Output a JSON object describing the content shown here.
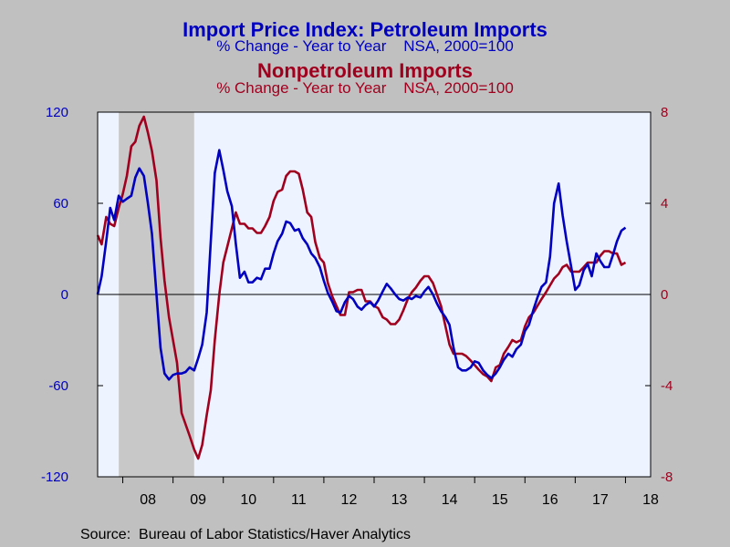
{
  "titles": {
    "line1": "Import Price Index: Petroleum Imports",
    "line2": "% Change - Year to Year    NSA, 2000=100",
    "line3": "Nonpetroleum Imports",
    "line4": "% Change - Year to Year    NSA, 2000=100"
  },
  "source": "Source:  Bureau of Labor Statistics/Haver Analytics",
  "colors": {
    "petroleum": "#0000c0",
    "nonpetroleum": "#a0001e",
    "plot_bg": "#eef4ff",
    "recession": "#c8c8c8",
    "frame": "#c0c0c0"
  },
  "chart_data": {
    "type": "line",
    "x_range": [
      2007.5,
      2018.5
    ],
    "x_tick_labels": [
      "08",
      "09",
      "10",
      "11",
      "12",
      "13",
      "14",
      "15",
      "16",
      "17",
      "18"
    ],
    "y_left": {
      "range": [
        -120,
        120
      ],
      "ticks": [
        "120",
        "60",
        "0",
        "-60",
        "-120"
      ]
    },
    "y_right": {
      "range": [
        -8,
        8
      ],
      "ticks": [
        "8",
        "4",
        "0",
        "-4",
        "-8"
      ]
    },
    "recession_shading": [
      2007.92,
      2009.42
    ],
    "zero_line": true,
    "series": [
      {
        "axis": "left",
        "points": [
          [
            2007.5,
            0
          ],
          [
            2007.58,
            12
          ],
          [
            2007.67,
            35
          ],
          [
            2007.75,
            57
          ],
          [
            2007.83,
            49
          ],
          [
            2007.92,
            65
          ],
          [
            2008.0,
            61
          ],
          [
            2008.08,
            63
          ],
          [
            2008.17,
            65
          ],
          [
            2008.25,
            77
          ],
          [
            2008.33,
            83
          ],
          [
            2008.42,
            78
          ],
          [
            2008.5,
            60
          ],
          [
            2008.58,
            40
          ],
          [
            2008.67,
            0
          ],
          [
            2008.75,
            -35
          ],
          [
            2008.83,
            -52
          ],
          [
            2008.92,
            -56
          ],
          [
            2009.0,
            -53
          ],
          [
            2009.08,
            -52
          ],
          [
            2009.17,
            -52
          ],
          [
            2009.25,
            -51
          ],
          [
            2009.33,
            -48
          ],
          [
            2009.42,
            -50
          ],
          [
            2009.5,
            -42
          ],
          [
            2009.58,
            -33
          ],
          [
            2009.67,
            -12
          ],
          [
            2009.75,
            35
          ],
          [
            2009.83,
            80
          ],
          [
            2009.92,
            95
          ],
          [
            2010.0,
            82
          ],
          [
            2010.08,
            68
          ],
          [
            2010.17,
            58
          ],
          [
            2010.25,
            33
          ],
          [
            2010.33,
            11
          ],
          [
            2010.42,
            15
          ],
          [
            2010.5,
            8
          ],
          [
            2010.58,
            8
          ],
          [
            2010.67,
            11
          ],
          [
            2010.75,
            10
          ],
          [
            2010.83,
            17
          ],
          [
            2010.92,
            17
          ],
          [
            2011.0,
            27
          ],
          [
            2011.08,
            35
          ],
          [
            2011.17,
            40
          ],
          [
            2011.25,
            48
          ],
          [
            2011.33,
            47
          ],
          [
            2011.42,
            42
          ],
          [
            2011.5,
            43
          ],
          [
            2011.58,
            37
          ],
          [
            2011.67,
            33
          ],
          [
            2011.75,
            27
          ],
          [
            2011.83,
            24
          ],
          [
            2011.92,
            18
          ],
          [
            2012.0,
            9
          ],
          [
            2012.08,
            1
          ],
          [
            2012.17,
            -5
          ],
          [
            2012.25,
            -11
          ],
          [
            2012.33,
            -12
          ],
          [
            2012.42,
            -5
          ],
          [
            2012.5,
            -1
          ],
          [
            2012.58,
            -3
          ],
          [
            2012.67,
            -8
          ],
          [
            2012.75,
            -10
          ],
          [
            2012.83,
            -7
          ],
          [
            2012.92,
            -5
          ],
          [
            2013.0,
            -8
          ],
          [
            2013.08,
            -4
          ],
          [
            2013.17,
            2
          ],
          [
            2013.25,
            7
          ],
          [
            2013.33,
            4
          ],
          [
            2013.42,
            0
          ],
          [
            2013.5,
            -3
          ],
          [
            2013.58,
            -4
          ],
          [
            2013.67,
            -2
          ],
          [
            2013.75,
            -3
          ],
          [
            2013.83,
            -1
          ],
          [
            2013.92,
            -2
          ],
          [
            2014.0,
            2
          ],
          [
            2014.08,
            5
          ],
          [
            2014.17,
            0
          ],
          [
            2014.25,
            -6
          ],
          [
            2014.33,
            -11
          ],
          [
            2014.42,
            -15
          ],
          [
            2014.5,
            -20
          ],
          [
            2014.58,
            -35
          ],
          [
            2014.67,
            -48
          ],
          [
            2014.75,
            -50
          ],
          [
            2014.83,
            -50
          ],
          [
            2014.92,
            -48
          ],
          [
            2015.0,
            -44
          ],
          [
            2015.08,
            -45
          ],
          [
            2015.17,
            -50
          ],
          [
            2015.25,
            -53
          ],
          [
            2015.33,
            -55
          ],
          [
            2015.42,
            -52
          ],
          [
            2015.5,
            -48
          ],
          [
            2015.58,
            -43
          ],
          [
            2015.67,
            -39
          ],
          [
            2015.75,
            -41
          ],
          [
            2015.83,
            -36
          ],
          [
            2015.92,
            -33
          ],
          [
            2016.0,
            -24
          ],
          [
            2016.08,
            -20
          ],
          [
            2016.17,
            -10
          ],
          [
            2016.25,
            -2
          ],
          [
            2016.33,
            5
          ],
          [
            2016.42,
            8
          ],
          [
            2016.5,
            25
          ],
          [
            2016.58,
            60
          ],
          [
            2016.67,
            73
          ],
          [
            2016.75,
            52
          ],
          [
            2016.83,
            35
          ],
          [
            2016.92,
            18
          ],
          [
            2017.0,
            3
          ],
          [
            2017.08,
            6
          ],
          [
            2017.17,
            16
          ],
          [
            2017.25,
            20
          ],
          [
            2017.33,
            12
          ],
          [
            2017.42,
            27
          ],
          [
            2017.5,
            22
          ],
          [
            2017.58,
            18
          ],
          [
            2017.67,
            18
          ],
          [
            2017.75,
            26
          ],
          [
            2017.83,
            35
          ],
          [
            2017.92,
            42
          ],
          [
            2018.0,
            44
          ]
        ]
      },
      {
        "axis": "right",
        "points": [
          [
            2007.5,
            2.6
          ],
          [
            2007.58,
            2.2
          ],
          [
            2007.67,
            3.4
          ],
          [
            2007.75,
            3.1
          ],
          [
            2007.83,
            3.0
          ],
          [
            2007.92,
            3.8
          ],
          [
            2008.0,
            4.4
          ],
          [
            2008.08,
            5.2
          ],
          [
            2008.17,
            6.5
          ],
          [
            2008.25,
            6.7
          ],
          [
            2008.33,
            7.4
          ],
          [
            2008.42,
            7.8
          ],
          [
            2008.5,
            7.1
          ],
          [
            2008.58,
            6.3
          ],
          [
            2008.67,
            5.0
          ],
          [
            2008.75,
            2.5
          ],
          [
            2008.83,
            0.6
          ],
          [
            2008.92,
            -1.0
          ],
          [
            2009.0,
            -2.0
          ],
          [
            2009.08,
            -3.0
          ],
          [
            2009.17,
            -5.2
          ],
          [
            2009.25,
            -5.7
          ],
          [
            2009.33,
            -6.2
          ],
          [
            2009.42,
            -6.8
          ],
          [
            2009.5,
            -7.2
          ],
          [
            2009.58,
            -6.6
          ],
          [
            2009.67,
            -5.3
          ],
          [
            2009.75,
            -4.2
          ],
          [
            2009.83,
            -2.0
          ],
          [
            2009.92,
            0.0
          ],
          [
            2010.0,
            1.4
          ],
          [
            2010.08,
            2.1
          ],
          [
            2010.17,
            2.9
          ],
          [
            2010.25,
            3.6
          ],
          [
            2010.33,
            3.1
          ],
          [
            2010.42,
            3.1
          ],
          [
            2010.5,
            2.9
          ],
          [
            2010.58,
            2.9
          ],
          [
            2010.67,
            2.7
          ],
          [
            2010.75,
            2.7
          ],
          [
            2010.83,
            3.0
          ],
          [
            2010.92,
            3.4
          ],
          [
            2011.0,
            4.1
          ],
          [
            2011.08,
            4.5
          ],
          [
            2011.17,
            4.6
          ],
          [
            2011.25,
            5.2
          ],
          [
            2011.33,
            5.4
          ],
          [
            2011.42,
            5.4
          ],
          [
            2011.5,
            5.3
          ],
          [
            2011.58,
            4.6
          ],
          [
            2011.67,
            3.6
          ],
          [
            2011.75,
            3.4
          ],
          [
            2011.83,
            2.3
          ],
          [
            2011.92,
            1.6
          ],
          [
            2012.0,
            1.4
          ],
          [
            2012.08,
            0.5
          ],
          [
            2012.17,
            -0.1
          ],
          [
            2012.25,
            -0.5
          ],
          [
            2012.33,
            -0.9
          ],
          [
            2012.42,
            -0.9
          ],
          [
            2012.5,
            0.1
          ],
          [
            2012.58,
            0.1
          ],
          [
            2012.67,
            0.2
          ],
          [
            2012.75,
            0.2
          ],
          [
            2012.83,
            -0.3
          ],
          [
            2012.92,
            -0.3
          ],
          [
            2013.0,
            -0.5
          ],
          [
            2013.08,
            -0.6
          ],
          [
            2013.17,
            -1.0
          ],
          [
            2013.25,
            -1.1
          ],
          [
            2013.33,
            -1.3
          ],
          [
            2013.42,
            -1.3
          ],
          [
            2013.5,
            -1.1
          ],
          [
            2013.58,
            -0.7
          ],
          [
            2013.67,
            -0.2
          ],
          [
            2013.75,
            0.1
          ],
          [
            2013.83,
            0.3
          ],
          [
            2013.92,
            0.6
          ],
          [
            2014.0,
            0.8
          ],
          [
            2014.08,
            0.8
          ],
          [
            2014.17,
            0.5
          ],
          [
            2014.25,
            0.0
          ],
          [
            2014.33,
            -0.5
          ],
          [
            2014.42,
            -1.4
          ],
          [
            2014.5,
            -2.2
          ],
          [
            2014.58,
            -2.6
          ],
          [
            2014.67,
            -2.6
          ],
          [
            2014.75,
            -2.6
          ],
          [
            2014.83,
            -2.7
          ],
          [
            2014.92,
            -2.9
          ],
          [
            2015.0,
            -3.1
          ],
          [
            2015.08,
            -3.3
          ],
          [
            2015.17,
            -3.5
          ],
          [
            2015.25,
            -3.6
          ],
          [
            2015.33,
            -3.8
          ],
          [
            2015.42,
            -3.2
          ],
          [
            2015.5,
            -3.1
          ],
          [
            2015.58,
            -2.6
          ],
          [
            2015.67,
            -2.3
          ],
          [
            2015.75,
            -2.0
          ],
          [
            2015.83,
            -2.1
          ],
          [
            2015.92,
            -2.0
          ],
          [
            2016.0,
            -1.4
          ],
          [
            2016.08,
            -1.0
          ],
          [
            2016.17,
            -0.8
          ],
          [
            2016.25,
            -0.5
          ],
          [
            2016.33,
            -0.2
          ],
          [
            2016.42,
            0.1
          ],
          [
            2016.5,
            0.4
          ],
          [
            2016.58,
            0.7
          ],
          [
            2016.67,
            0.9
          ],
          [
            2016.75,
            1.2
          ],
          [
            2016.83,
            1.3
          ],
          [
            2016.92,
            1.0
          ],
          [
            2017.0,
            1.0
          ],
          [
            2017.08,
            1.0
          ],
          [
            2017.17,
            1.2
          ],
          [
            2017.25,
            1.4
          ],
          [
            2017.33,
            1.4
          ],
          [
            2017.42,
            1.4
          ],
          [
            2017.5,
            1.7
          ],
          [
            2017.58,
            1.9
          ],
          [
            2017.67,
            1.9
          ],
          [
            2017.75,
            1.8
          ],
          [
            2017.83,
            1.8
          ],
          [
            2017.92,
            1.3
          ],
          [
            2018.0,
            1.4
          ]
        ]
      }
    ]
  }
}
